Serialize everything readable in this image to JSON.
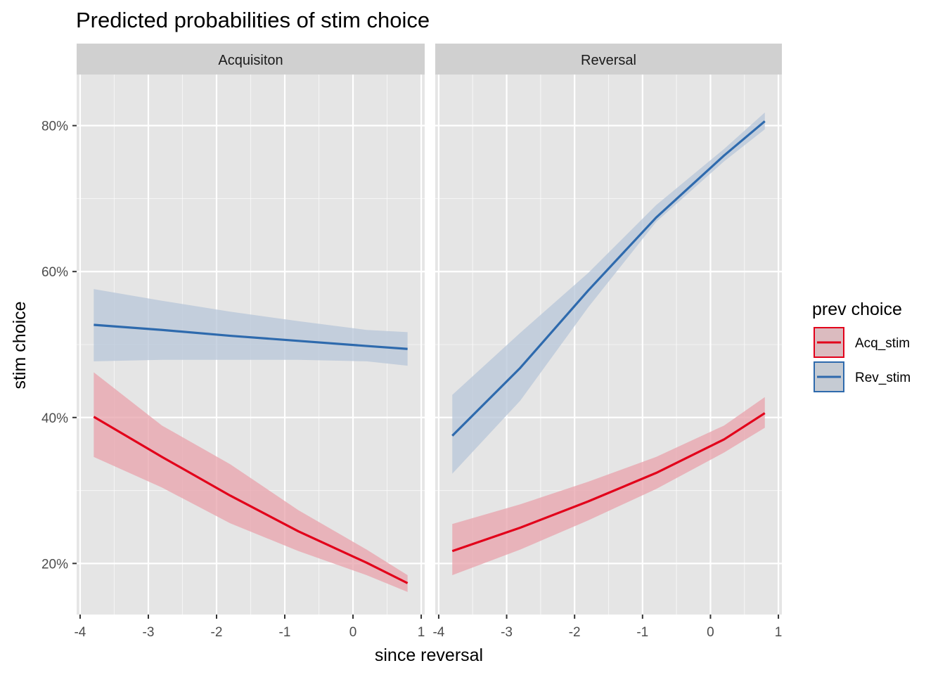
{
  "chart_data": {
    "type": "line",
    "title": "Predicted probabilities of stim choice",
    "xlabel": "since reversal",
    "ylabel": "stim choice",
    "xlim": [
      -4,
      1
    ],
    "ylim": [
      0.13,
      0.87
    ],
    "x_ticks": [
      -4,
      -3,
      -2,
      -1,
      0,
      1
    ],
    "x_tick_labels": [
      "-4",
      "-3",
      "-2",
      "-1",
      "0",
      "1"
    ],
    "y_ticks": [
      0.2,
      0.4,
      0.6,
      0.8
    ],
    "y_tick_labels": [
      "20%",
      "40%",
      "60%",
      "80%"
    ],
    "grid": true,
    "legend": {
      "title": "prev choice",
      "position": "right",
      "entries": [
        {
          "label": "Acq_stim",
          "color": "#e2001a"
        },
        {
          "label": "Rev_stim",
          "color": "#2e6aad"
        }
      ]
    },
    "panels": [
      {
        "name": "Acquisiton",
        "series": [
          {
            "name": "Acq_stim",
            "color": "#e2001a",
            "points": [
              {
                "x": -3.8,
                "y": 0.401,
                "lo": 0.346,
                "hi": 0.462
              },
              {
                "x": -2.8,
                "y": 0.346,
                "lo": 0.304,
                "hi": 0.389
              },
              {
                "x": -1.8,
                "y": 0.293,
                "lo": 0.255,
                "hi": 0.336
              },
              {
                "x": -0.8,
                "y": 0.244,
                "lo": 0.217,
                "hi": 0.273
              },
              {
                "x": 0.2,
                "y": 0.201,
                "lo": 0.184,
                "hi": 0.219
              },
              {
                "x": 0.8,
                "y": 0.173,
                "lo": 0.161,
                "hi": 0.184
              }
            ]
          },
          {
            "name": "Rev_stim",
            "color": "#2e6aad",
            "points": [
              {
                "x": -3.8,
                "y": 0.527,
                "lo": 0.477,
                "hi": 0.576
              },
              {
                "x": -2.8,
                "y": 0.52,
                "lo": 0.479,
                "hi": 0.56
              },
              {
                "x": -1.8,
                "y": 0.512,
                "lo": 0.479,
                "hi": 0.545
              },
              {
                "x": -0.8,
                "y": 0.505,
                "lo": 0.479,
                "hi": 0.532
              },
              {
                "x": 0.2,
                "y": 0.498,
                "lo": 0.477,
                "hi": 0.52
              },
              {
                "x": 0.8,
                "y": 0.494,
                "lo": 0.471,
                "hi": 0.517
              }
            ]
          }
        ]
      },
      {
        "name": "Reversal",
        "series": [
          {
            "name": "Acq_stim",
            "color": "#e2001a",
            "points": [
              {
                "x": -3.8,
                "y": 0.217,
                "lo": 0.184,
                "hi": 0.254
              },
              {
                "x": -2.8,
                "y": 0.249,
                "lo": 0.219,
                "hi": 0.281
              },
              {
                "x": -1.8,
                "y": 0.285,
                "lo": 0.259,
                "hi": 0.312
              },
              {
                "x": -0.8,
                "y": 0.324,
                "lo": 0.302,
                "hi": 0.346
              },
              {
                "x": 0.2,
                "y": 0.37,
                "lo": 0.352,
                "hi": 0.389
              },
              {
                "x": 0.8,
                "y": 0.406,
                "lo": 0.386,
                "hi": 0.428
              }
            ]
          },
          {
            "name": "Rev_stim",
            "color": "#2e6aad",
            "points": [
              {
                "x": -3.8,
                "y": 0.375,
                "lo": 0.323,
                "hi": 0.431
              },
              {
                "x": -2.8,
                "y": 0.468,
                "lo": 0.423,
                "hi": 0.516
              },
              {
                "x": -1.8,
                "y": 0.574,
                "lo": 0.551,
                "hi": 0.598
              },
              {
                "x": -0.8,
                "y": 0.674,
                "lo": 0.668,
                "hi": 0.691
              },
              {
                "x": 0.2,
                "y": 0.759,
                "lo": 0.751,
                "hi": 0.768
              },
              {
                "x": 0.8,
                "y": 0.806,
                "lo": 0.795,
                "hi": 0.818
              }
            ]
          }
        ]
      }
    ]
  },
  "colors": {
    "panel_background": "#e5e5e5",
    "strip_background": "#d0d0d0",
    "grid_major": "#ffffff",
    "acq_band": "#e8a1ab",
    "rev_band": "#b7c6d8"
  }
}
